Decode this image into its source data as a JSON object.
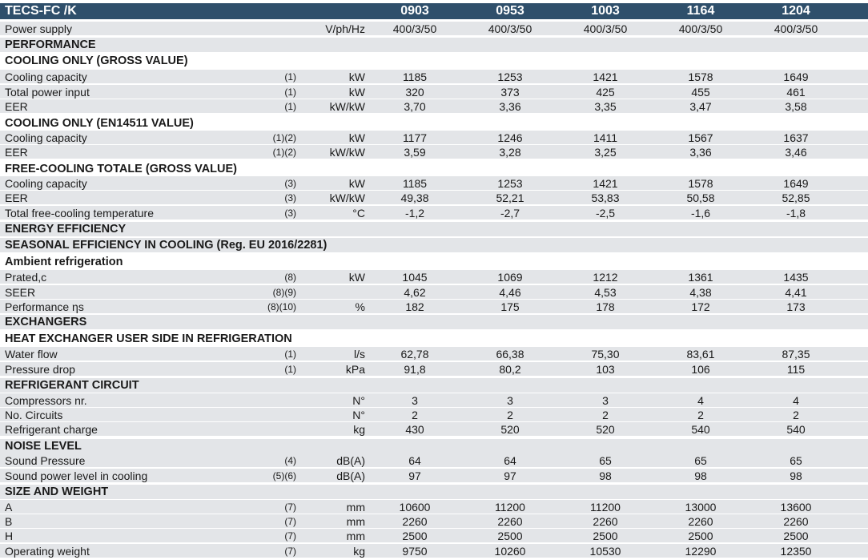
{
  "title": "TECS-FC /K",
  "models": [
    "0903",
    "0953",
    "1003",
    "1164",
    "1204"
  ],
  "rows": [
    {
      "type": "data",
      "label": "Power supply",
      "note": "",
      "unit": "V/ph/Hz",
      "values": [
        "400/3/50",
        "400/3/50",
        "400/3/50",
        "400/3/50",
        "400/3/50"
      ]
    },
    {
      "type": "section",
      "label": "PERFORMANCE"
    },
    {
      "type": "subsection",
      "label": "COOLING ONLY (GROSS VALUE)"
    },
    {
      "type": "data",
      "label": "Cooling capacity",
      "note": "(1)",
      "unit": "kW",
      "values": [
        "1185",
        "1253",
        "1421",
        "1578",
        "1649"
      ]
    },
    {
      "type": "data",
      "label": "Total power input",
      "note": "(1)",
      "unit": "kW",
      "values": [
        "320",
        "373",
        "425",
        "455",
        "461"
      ]
    },
    {
      "type": "data",
      "label": "EER",
      "note": "(1)",
      "unit": "kW/kW",
      "values": [
        "3,70",
        "3,36",
        "3,35",
        "3,47",
        "3,58"
      ]
    },
    {
      "type": "subsection",
      "label": "COOLING ONLY (EN14511 VALUE)"
    },
    {
      "type": "data",
      "label": "Cooling capacity",
      "note": "(1)(2)",
      "unit": "kW",
      "values": [
        "1177",
        "1246",
        "1411",
        "1567",
        "1637"
      ]
    },
    {
      "type": "data",
      "label": "EER",
      "note": "(1)(2)",
      "unit": "kW/kW",
      "values": [
        "3,59",
        "3,28",
        "3,25",
        "3,36",
        "3,46"
      ]
    },
    {
      "type": "subsection",
      "label": "FREE-COOLING TOTALE (GROSS VALUE)"
    },
    {
      "type": "data",
      "label": "Cooling capacity",
      "note": "(3)",
      "unit": "kW",
      "values": [
        "1185",
        "1253",
        "1421",
        "1578",
        "1649"
      ]
    },
    {
      "type": "data",
      "label": "EER",
      "note": "(3)",
      "unit": "kW/kW",
      "values": [
        "49,38",
        "52,21",
        "53,83",
        "50,58",
        "52,85"
      ]
    },
    {
      "type": "data",
      "label": "Total free-cooling temperature",
      "note": "(3)",
      "unit": "°C",
      "values": [
        "-1,2",
        "-2,7",
        "-2,5",
        "-1,6",
        "-1,8"
      ]
    },
    {
      "type": "section",
      "label": "ENERGY EFFICIENCY"
    },
    {
      "type": "section",
      "label": "SEASONAL EFFICIENCY IN COOLING (Reg. EU 2016/2281)"
    },
    {
      "type": "subsection",
      "label": "Ambient refrigeration"
    },
    {
      "type": "data",
      "label": "Prated,c",
      "note": "(8)",
      "unit": "kW",
      "values": [
        "1045",
        "1069",
        "1212",
        "1361",
        "1435"
      ]
    },
    {
      "type": "data",
      "label": "SEER",
      "note": "(8)(9)",
      "unit": "",
      "values": [
        "4,62",
        "4,46",
        "4,53",
        "4,38",
        "4,41"
      ]
    },
    {
      "type": "data",
      "label": "Performance ηs",
      "note": "(8)(10)",
      "unit": "%",
      "values": [
        "182",
        "175",
        "178",
        "172",
        "173"
      ]
    },
    {
      "type": "section",
      "label": "EXCHANGERS"
    },
    {
      "type": "subsection",
      "label": "HEAT EXCHANGER USER SIDE IN REFRIGERATION"
    },
    {
      "type": "data",
      "label": "Water flow",
      "note": "(1)",
      "unit": "l/s",
      "values": [
        "62,78",
        "66,38",
        "75,30",
        "83,61",
        "87,35"
      ]
    },
    {
      "type": "data",
      "label": "Pressure drop",
      "note": "(1)",
      "unit": "kPa",
      "values": [
        "91,8",
        "80,2",
        "103",
        "106",
        "115"
      ]
    },
    {
      "type": "section",
      "label": "REFRIGERANT CIRCUIT"
    },
    {
      "type": "data",
      "label": "Compressors nr.",
      "note": "",
      "unit": "N°",
      "values": [
        "3",
        "3",
        "3",
        "4",
        "4"
      ]
    },
    {
      "type": "data",
      "label": "No. Circuits",
      "note": "",
      "unit": "N°",
      "values": [
        "2",
        "2",
        "2",
        "2",
        "2"
      ]
    },
    {
      "type": "data",
      "label": "Refrigerant charge",
      "note": "",
      "unit": "kg",
      "values": [
        "430",
        "520",
        "520",
        "540",
        "540"
      ]
    },
    {
      "type": "section",
      "label": "NOISE LEVEL"
    },
    {
      "type": "data",
      "label": "Sound Pressure",
      "note": "(4)",
      "unit": "dB(A)",
      "values": [
        "64",
        "64",
        "65",
        "65",
        "65"
      ]
    },
    {
      "type": "data",
      "label": "Sound power level in cooling",
      "note": "(5)(6)",
      "unit": "dB(A)",
      "values": [
        "97",
        "97",
        "98",
        "98",
        "98"
      ]
    },
    {
      "type": "section",
      "label": "SIZE AND WEIGHT"
    },
    {
      "type": "data",
      "label": "A",
      "note": "(7)",
      "unit": "mm",
      "values": [
        "10600",
        "11200",
        "11200",
        "13000",
        "13600"
      ]
    },
    {
      "type": "data",
      "label": "B",
      "note": "(7)",
      "unit": "mm",
      "values": [
        "2260",
        "2260",
        "2260",
        "2260",
        "2260"
      ]
    },
    {
      "type": "data",
      "label": "H",
      "note": "(7)",
      "unit": "mm",
      "values": [
        "2500",
        "2500",
        "2500",
        "2500",
        "2500"
      ]
    },
    {
      "type": "data",
      "label": "Operating weight",
      "note": "(7)",
      "unit": "kg",
      "values": [
        "9750",
        "10260",
        "10530",
        "12290",
        "12350"
      ]
    }
  ]
}
